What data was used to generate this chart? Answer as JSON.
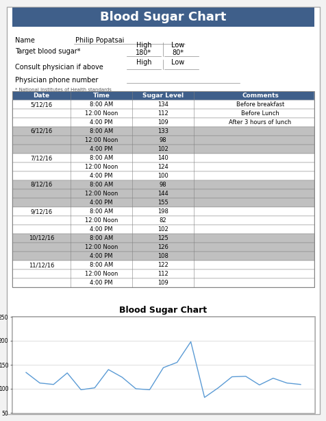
{
  "title": "Blood Sugar Chart",
  "header_bg": "#3F5F8A",
  "header_text_color": "#FFFFFF",
  "name_label": "Name",
  "name_value": "Philip Popatsai",
  "target_label": "Target blood sugar*",
  "high_label": "High",
  "low_label": "Low",
  "target_high": "180*",
  "target_low": "80*",
  "consult_label": "Consult physician if above",
  "physician_label": "Physician phone number",
  "footnote": "* National Institutes of Health standards",
  "table_headers": [
    "Date",
    "Time",
    "Sugar Level",
    "Comments"
  ],
  "table_data": [
    [
      "5/12/16",
      "8:00 AM",
      "134",
      "Before breakfast"
    ],
    [
      "5/12/16",
      "12:00 Noon",
      "112",
      "Before Lunch"
    ],
    [
      "5/12/16",
      "4:00 PM",
      "109",
      "After 3 hours of lunch"
    ],
    [
      "6/12/16",
      "8:00 AM",
      "133",
      ""
    ],
    [
      "6/12/16",
      "12:00 Noon",
      "98",
      ""
    ],
    [
      "6/12/16",
      "4:00 PM",
      "102",
      ""
    ],
    [
      "7/12/16",
      "8:00 AM",
      "140",
      ""
    ],
    [
      "7/12/16",
      "12:00 Noon",
      "124",
      ""
    ],
    [
      "7/12/16",
      "4:00 PM",
      "100",
      ""
    ],
    [
      "8/12/16",
      "8:00 AM",
      "98",
      ""
    ],
    [
      "8/12/16",
      "12:00 Noon",
      "144",
      ""
    ],
    [
      "8/12/16",
      "4:00 PM",
      "155",
      ""
    ],
    [
      "9/12/16",
      "8:00 AM",
      "198",
      ""
    ],
    [
      "9/12/16",
      "12:00 Noon",
      "82",
      ""
    ],
    [
      "9/12/16",
      "4:00 PM",
      "102",
      ""
    ],
    [
      "10/12/16",
      "8:00 AM",
      "125",
      ""
    ],
    [
      "10/12/16",
      "12:00 Noon",
      "126",
      ""
    ],
    [
      "10/12/16",
      "4:00 PM",
      "108",
      ""
    ],
    [
      "11/12/16",
      "8:00 AM",
      "122",
      ""
    ],
    [
      "11/12/16",
      "12:00 Noon",
      "112",
      ""
    ],
    [
      "11/12/16",
      "4:00 PM",
      "109",
      ""
    ]
  ],
  "date_groups": [
    {
      "date": "5/12/16",
      "rows": [
        0,
        1,
        2
      ],
      "shaded": false
    },
    {
      "date": "6/12/16",
      "rows": [
        3,
        4,
        5
      ],
      "shaded": true
    },
    {
      "date": "7/12/16",
      "rows": [
        6,
        7,
        8
      ],
      "shaded": false
    },
    {
      "date": "8/12/16",
      "rows": [
        9,
        10,
        11
      ],
      "shaded": true
    },
    {
      "date": "9/12/16",
      "rows": [
        12,
        13,
        14
      ],
      "shaded": false
    },
    {
      "date": "10/12/16",
      "rows": [
        15,
        16,
        17
      ],
      "shaded": true
    },
    {
      "date": "11/12/16",
      "rows": [
        18,
        19,
        20
      ],
      "shaded": false
    }
  ],
  "row_shaded_color": "#C0C0C0",
  "row_white_color": "#FFFFFF",
  "table_border_color": "#808080",
  "chart_values": [
    134,
    112,
    109,
    133,
    98,
    102,
    140,
    124,
    100,
    98,
    144,
    155,
    198,
    82,
    102,
    125,
    126,
    108,
    122,
    112,
    109
  ],
  "chart_title": "Blood Sugar Chart",
  "chart_line_color": "#5B9BD5",
  "chart_bg": "#FFFFFF",
  "chart_grid_color": "#D0D0D0",
  "chart_ylim": [
    50,
    250
  ],
  "chart_yticks": [
    50,
    100,
    150,
    200,
    250
  ]
}
